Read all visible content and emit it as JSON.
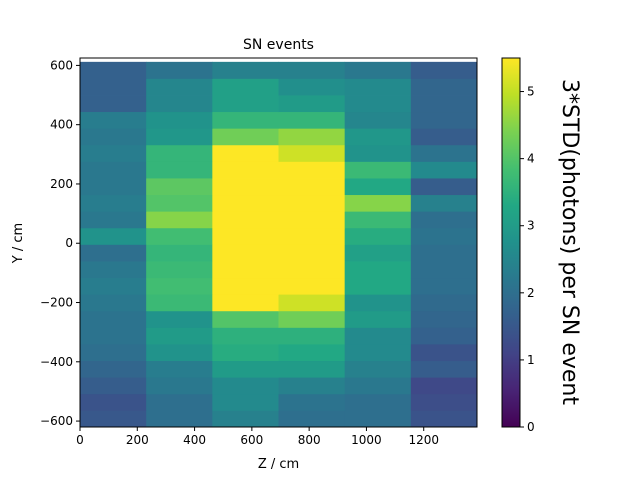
{
  "chart_data": {
    "type": "heatmap",
    "title": "SN events",
    "xlabel": "Z / cm",
    "ylabel": "Y / cm",
    "colorbar_label": "3*STD(photons) per SN event",
    "colormap": "viridis",
    "x_edges": [
      0,
      231,
      462,
      693,
      924,
      1155,
      1386
    ],
    "y_edges": [
      -620,
      -564,
      -508,
      -452,
      -396,
      -340,
      -284,
      -228,
      -172,
      -116,
      -60,
      -4,
      52,
      108,
      164,
      220,
      276,
      332,
      388,
      444,
      500,
      556,
      612
    ],
    "xlim": [
      0,
      1386
    ],
    "ylim": [
      -620,
      625
    ],
    "x_ticks": [
      0,
      200,
      400,
      600,
      800,
      1000,
      1200
    ],
    "y_ticks": [
      -600,
      -400,
      -200,
      0,
      200,
      400,
      600
    ],
    "clim": [
      0,
      5.5
    ],
    "colorbar_ticks": [
      0,
      1,
      2,
      3,
      4,
      5
    ],
    "z_rows_bottom_to_top": [
      [
        1.5,
        2.0,
        2.4,
        2.0,
        2.0,
        1.4
      ],
      [
        1.4,
        2.0,
        2.6,
        2.1,
        2.0,
        1.3
      ],
      [
        1.6,
        2.2,
        2.6,
        2.4,
        2.2,
        1.2
      ],
      [
        1.8,
        2.3,
        3.0,
        3.0,
        2.4,
        1.6
      ],
      [
        2.0,
        2.8,
        3.4,
        3.3,
        2.6,
        1.4
      ],
      [
        2.1,
        3.0,
        3.5,
        3.5,
        2.6,
        1.7
      ],
      [
        2.1,
        2.8,
        4.0,
        4.3,
        3.0,
        1.8
      ],
      [
        2.2,
        3.7,
        5.5,
        5.1,
        2.8,
        1.9
      ],
      [
        2.3,
        3.8,
        5.5,
        5.5,
        3.3,
        2.0
      ],
      [
        2.2,
        3.7,
        5.5,
        5.5,
        3.3,
        2.0
      ],
      [
        2.0,
        3.6,
        5.5,
        5.5,
        3.1,
        2.0
      ],
      [
        2.8,
        3.8,
        5.5,
        5.5,
        3.4,
        2.1
      ],
      [
        2.2,
        4.5,
        5.5,
        5.5,
        3.7,
        2.0
      ],
      [
        2.3,
        4.0,
        5.5,
        5.5,
        4.5,
        2.4
      ],
      [
        2.2,
        4.1,
        5.5,
        5.5,
        3.3,
        1.6
      ],
      [
        2.2,
        3.6,
        5.5,
        5.5,
        3.7,
        2.6
      ],
      [
        2.3,
        3.6,
        5.5,
        5.1,
        2.8,
        2.1
      ],
      [
        2.2,
        2.9,
        4.3,
        4.6,
        2.9,
        1.6
      ],
      [
        2.3,
        2.8,
        3.6,
        3.6,
        2.5,
        1.8
      ],
      [
        1.7,
        2.5,
        3.1,
        3.0,
        2.6,
        1.8
      ],
      [
        1.7,
        2.5,
        3.1,
        2.7,
        2.6,
        1.8
      ],
      [
        1.7,
        2.1,
        2.4,
        2.4,
        2.2,
        1.6
      ]
    ]
  }
}
